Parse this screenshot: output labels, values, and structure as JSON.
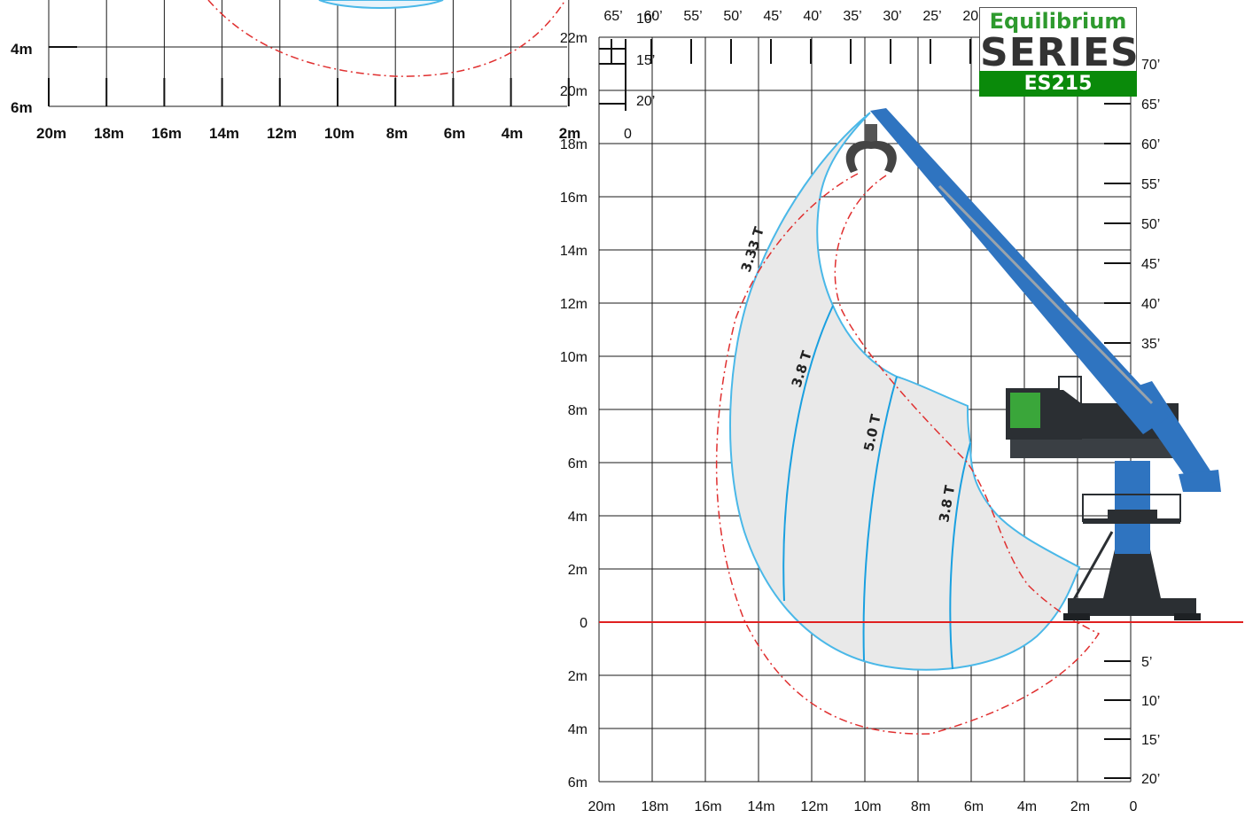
{
  "logo": {
    "line1": "Equilibrium",
    "line2": "SERIES",
    "model": "ES215",
    "colors": {
      "line1": "#2e9a2e",
      "line2": "#333333",
      "band": "#0a8a0a"
    }
  },
  "main_chart": {
    "x_metric_labels": [
      "20m",
      "18m",
      "16m",
      "14m",
      "12m",
      "10m",
      "8m",
      "6m",
      "4m",
      "2m",
      "0"
    ],
    "y_metric_labels_above": [
      "22m",
      "20m",
      "18m",
      "16m",
      "14m",
      "12m",
      "10m",
      "8m",
      "6m",
      "4m",
      "2m",
      "0"
    ],
    "y_metric_labels_below": [
      "2m",
      "4m",
      "6m"
    ],
    "x_feet_labels": [
      "65’",
      "60’",
      "55’",
      "50’",
      "45’",
      "40’",
      "35’",
      "30’",
      "25’",
      "20’"
    ],
    "y_feet_labels_right_above": [
      "70’",
      "65’",
      "60’",
      "55’",
      "50’",
      "45’",
      "40’",
      "35’"
    ],
    "y_feet_labels_right_below": [
      "5’",
      "10’",
      "15’",
      "20’"
    ],
    "y_feet_labels_left_top": [
      "10’",
      "15’",
      "20’",
      "0"
    ],
    "capacity_labels": [
      "3.33 T",
      "3.8 T",
      "5.0 T",
      "3.8 T"
    ]
  },
  "inset_chart": {
    "y_labels": [
      "4m",
      "6m"
    ],
    "x_labels": [
      "20m",
      "18m",
      "16m",
      "14m",
      "12m",
      "10m",
      "8m",
      "6m",
      "4m",
      "2m"
    ]
  },
  "colors": {
    "envelope_fill": "#e9e9e9",
    "envelope_stroke": "#4ab8e8",
    "reach_line": "#e03030",
    "ground_line": "#e02020",
    "boom_blue": "#2f74c0",
    "machine_dark": "#2b2f33",
    "cab_green": "#3aa63a"
  }
}
